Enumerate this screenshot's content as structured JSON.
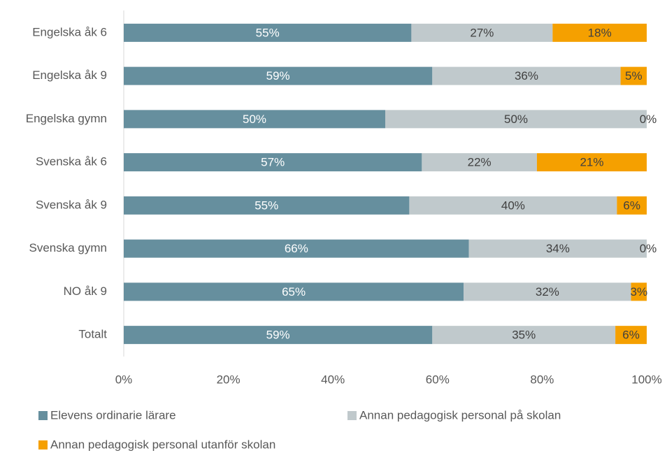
{
  "chart_data": {
    "type": "stacked-bar-horizontal",
    "categories": [
      "Engelska åk 6",
      "Engelska åk 9",
      "Engelska gymn",
      "Svenska åk 6",
      "Svenska åk 9",
      "Svenska gymn",
      "NO åk 9",
      "Totalt"
    ],
    "series": [
      {
        "name": "Elevens ordinarie lärare",
        "color": "#668f9e",
        "label_color": "#ffffff",
        "values": [
          55,
          59,
          50,
          57,
          54.6,
          66,
          65,
          59
        ],
        "value_labels": [
          "55%",
          "59%",
          "50%",
          "57%",
          "55%",
          "66%",
          "65%",
          "59%"
        ]
      },
      {
        "name": "Annan pedagogisk personal på skolan",
        "color": "#c0c9cc",
        "label_color": "#404040",
        "values": [
          27,
          36,
          50,
          22,
          39.7,
          34,
          32,
          35
        ],
        "value_labels": [
          "27%",
          "36%",
          "50%",
          "22%",
          "40%",
          "34%",
          "32%",
          "35%"
        ]
      },
      {
        "name": "Annan pedagogisk personal utanför skolan",
        "color": "#f5a000",
        "label_color": "#404040",
        "values": [
          18,
          5,
          0,
          21,
          5.7,
          0,
          3,
          6
        ],
        "value_labels": [
          "18%",
          "5%",
          "0%",
          "21%",
          "6%",
          "0%",
          "3%",
          "6%"
        ]
      }
    ],
    "xlim": [
      0,
      100
    ],
    "xticks": [
      {
        "value": 0,
        "label": "0%"
      },
      {
        "value": 20,
        "label": "20%"
      },
      {
        "value": 40,
        "label": "40%"
      },
      {
        "value": 60,
        "label": "60%"
      },
      {
        "value": 80,
        "label": "80%"
      },
      {
        "value": 100,
        "label": "100%"
      }
    ],
    "grid": false,
    "legend": "bottom"
  }
}
